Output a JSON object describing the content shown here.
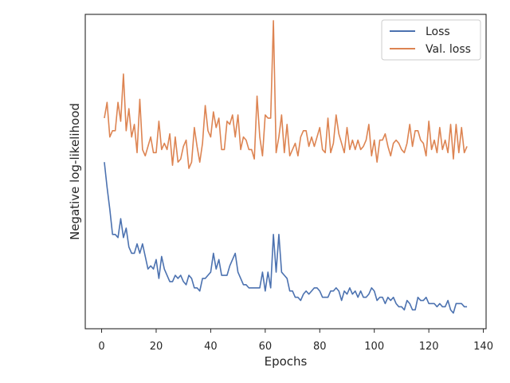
{
  "chart_data": {
    "type": "line",
    "title": "",
    "xlabel": "Epochs",
    "ylabel": "Negative log-likelihood",
    "xlim": [
      -6,
      141
    ],
    "ylim": [
      0,
      1
    ],
    "xticks": [
      0,
      20,
      40,
      60,
      80,
      100,
      120,
      140
    ],
    "yticks": [],
    "grid": false,
    "legend_position": "top-right",
    "series": [
      {
        "name": "Loss",
        "color": "#4c72b0",
        "x": [
          1,
          2,
          3,
          4,
          5,
          6,
          7,
          8,
          9,
          10,
          11,
          12,
          13,
          14,
          15,
          16,
          17,
          18,
          19,
          20,
          21,
          22,
          23,
          24,
          25,
          26,
          27,
          28,
          29,
          30,
          31,
          32,
          33,
          34,
          35,
          36,
          37,
          38,
          39,
          40,
          41,
          42,
          43,
          44,
          45,
          46,
          47,
          48,
          49,
          50,
          51,
          52,
          53,
          54,
          55,
          56,
          57,
          58,
          59,
          60,
          61,
          62,
          63,
          64,
          65,
          66,
          67,
          68,
          69,
          70,
          71,
          72,
          73,
          74,
          75,
          76,
          77,
          78,
          79,
          80,
          81,
          82,
          83,
          84,
          85,
          86,
          87,
          88,
          89,
          90,
          91,
          92,
          93,
          94,
          95,
          96,
          97,
          98,
          99,
          100,
          101,
          102,
          103,
          104,
          105,
          106,
          107,
          108,
          109,
          110,
          111,
          112,
          113,
          114,
          115,
          116,
          117,
          118,
          119,
          120,
          121,
          122,
          123,
          124,
          125,
          126,
          127,
          128,
          129,
          130,
          131,
          132,
          133,
          134
        ],
        "y": [
          0.53,
          0.45,
          0.38,
          0.3,
          0.3,
          0.29,
          0.35,
          0.29,
          0.32,
          0.26,
          0.24,
          0.24,
          0.27,
          0.24,
          0.27,
          0.23,
          0.19,
          0.2,
          0.19,
          0.22,
          0.16,
          0.23,
          0.19,
          0.17,
          0.15,
          0.15,
          0.17,
          0.16,
          0.17,
          0.15,
          0.14,
          0.17,
          0.16,
          0.13,
          0.13,
          0.12,
          0.16,
          0.16,
          0.17,
          0.18,
          0.24,
          0.19,
          0.22,
          0.17,
          0.17,
          0.17,
          0.2,
          0.22,
          0.24,
          0.18,
          0.16,
          0.14,
          0.14,
          0.13,
          0.13,
          0.13,
          0.13,
          0.13,
          0.18,
          0.12,
          0.18,
          0.13,
          0.3,
          0.18,
          0.3,
          0.18,
          0.17,
          0.16,
          0.12,
          0.12,
          0.1,
          0.1,
          0.09,
          0.11,
          0.12,
          0.11,
          0.12,
          0.13,
          0.13,
          0.12,
          0.1,
          0.1,
          0.1,
          0.12,
          0.12,
          0.13,
          0.12,
          0.09,
          0.12,
          0.11,
          0.13,
          0.11,
          0.12,
          0.1,
          0.12,
          0.1,
          0.1,
          0.11,
          0.13,
          0.12,
          0.09,
          0.1,
          0.1,
          0.08,
          0.1,
          0.09,
          0.1,
          0.08,
          0.07,
          0.07,
          0.06,
          0.09,
          0.08,
          0.06,
          0.06,
          0.1,
          0.09,
          0.09,
          0.1,
          0.08,
          0.08,
          0.08,
          0.07,
          0.08,
          0.07,
          0.07,
          0.09,
          0.06,
          0.05,
          0.08,
          0.08,
          0.08,
          0.07,
          0.07
        ]
      },
      {
        "name": "Val. loss",
        "color": "#dd8452",
        "x": [
          1,
          2,
          3,
          4,
          5,
          6,
          7,
          8,
          9,
          10,
          11,
          12,
          13,
          14,
          15,
          16,
          17,
          18,
          19,
          20,
          21,
          22,
          23,
          24,
          25,
          26,
          27,
          28,
          29,
          30,
          31,
          32,
          33,
          34,
          35,
          36,
          37,
          38,
          39,
          40,
          41,
          42,
          43,
          44,
          45,
          46,
          47,
          48,
          49,
          50,
          51,
          52,
          53,
          54,
          55,
          56,
          57,
          58,
          59,
          60,
          61,
          62,
          63,
          64,
          65,
          66,
          67,
          68,
          69,
          70,
          71,
          72,
          73,
          74,
          75,
          76,
          77,
          78,
          79,
          80,
          81,
          82,
          83,
          84,
          85,
          86,
          87,
          88,
          89,
          90,
          91,
          92,
          93,
          94,
          95,
          96,
          97,
          98,
          99,
          100,
          101,
          102,
          103,
          104,
          105,
          106,
          107,
          108,
          109,
          110,
          111,
          112,
          113,
          114,
          115,
          116,
          117,
          118,
          119,
          120,
          121,
          122,
          123,
          124,
          125,
          126,
          127,
          128,
          129,
          130,
          131,
          132,
          133,
          134
        ],
        "y": [
          0.67,
          0.72,
          0.61,
          0.63,
          0.63,
          0.72,
          0.66,
          0.81,
          0.63,
          0.7,
          0.61,
          0.65,
          0.56,
          0.73,
          0.57,
          0.55,
          0.58,
          0.61,
          0.56,
          0.56,
          0.66,
          0.57,
          0.59,
          0.57,
          0.62,
          0.52,
          0.61,
          0.53,
          0.54,
          0.58,
          0.6,
          0.51,
          0.53,
          0.64,
          0.58,
          0.53,
          0.59,
          0.71,
          0.63,
          0.61,
          0.69,
          0.64,
          0.67,
          0.57,
          0.57,
          0.66,
          0.65,
          0.68,
          0.61,
          0.68,
          0.57,
          0.61,
          0.6,
          0.57,
          0.57,
          0.54,
          0.74,
          0.61,
          0.55,
          0.68,
          0.67,
          0.67,
          0.98,
          0.56,
          0.61,
          0.68,
          0.56,
          0.65,
          0.55,
          0.57,
          0.59,
          0.55,
          0.61,
          0.63,
          0.63,
          0.58,
          0.61,
          0.58,
          0.61,
          0.64,
          0.57,
          0.56,
          0.67,
          0.56,
          0.59,
          0.68,
          0.62,
          0.59,
          0.56,
          0.64,
          0.57,
          0.6,
          0.57,
          0.6,
          0.57,
          0.58,
          0.6,
          0.65,
          0.55,
          0.6,
          0.53,
          0.6,
          0.6,
          0.62,
          0.58,
          0.55,
          0.59,
          0.6,
          0.59,
          0.57,
          0.56,
          0.59,
          0.65,
          0.58,
          0.63,
          0.63,
          0.6,
          0.59,
          0.55,
          0.66,
          0.57,
          0.6,
          0.56,
          0.64,
          0.57,
          0.6,
          0.56,
          0.65,
          0.54,
          0.65,
          0.56,
          0.64,
          0.56,
          0.58
        ]
      }
    ]
  }
}
